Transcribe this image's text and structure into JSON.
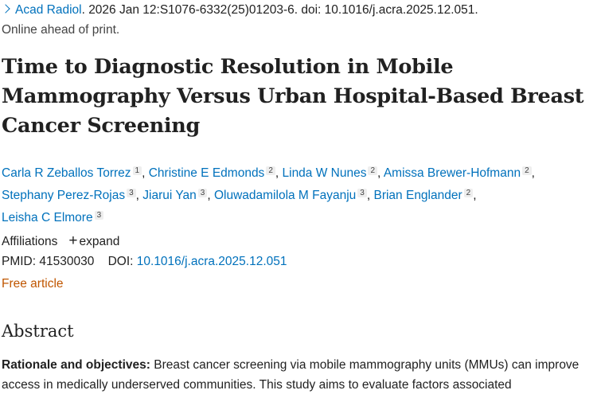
{
  "citation": {
    "journal": "Acad Radiol",
    "details": ". 2026 Jan 12:S1076-6332(25)01203-6. doi: 10.1016/j.acra.2025.12.051.",
    "status": "Online ahead of print."
  },
  "title": "Time to Diagnostic Resolution in Mobile Mammography Versus Urban Hospital-Based Breast Cancer Screening",
  "authors": [
    {
      "name": "Carla R Zeballos Torrez",
      "aff": "1"
    },
    {
      "name": "Christine E Edmonds",
      "aff": "2"
    },
    {
      "name": "Linda W Nunes",
      "aff": "2"
    },
    {
      "name": "Amissa Brewer-Hofmann",
      "aff": "2"
    },
    {
      "name": "Stephany Perez-Rojas",
      "aff": "3"
    },
    {
      "name": "Jiarui Yan",
      "aff": "3"
    },
    {
      "name": "Oluwadamilola M Fayanju",
      "aff": "3"
    },
    {
      "name": "Brian Englander",
      "aff": "2"
    },
    {
      "name": "Leisha C Elmore",
      "aff": "3"
    }
  ],
  "affiliations": {
    "label": "Affiliations",
    "expand": "expand",
    "icon": "plus-icon"
  },
  "ids": {
    "pmid_label": "PMID:",
    "pmid": "41530030",
    "doi_label": "DOI:",
    "doi": "10.1016/j.acra.2025.12.051"
  },
  "free_article": "Free article",
  "abstract": {
    "heading": "Abstract",
    "section_label": "Rationale and objectives:",
    "text": " Breast cancer screening via mobile mammography units (MMUs) can improve access in medically underserved communities. This study aims to evaluate factors associated"
  },
  "colors": {
    "link": "#0071bc",
    "free": "#c05600"
  }
}
